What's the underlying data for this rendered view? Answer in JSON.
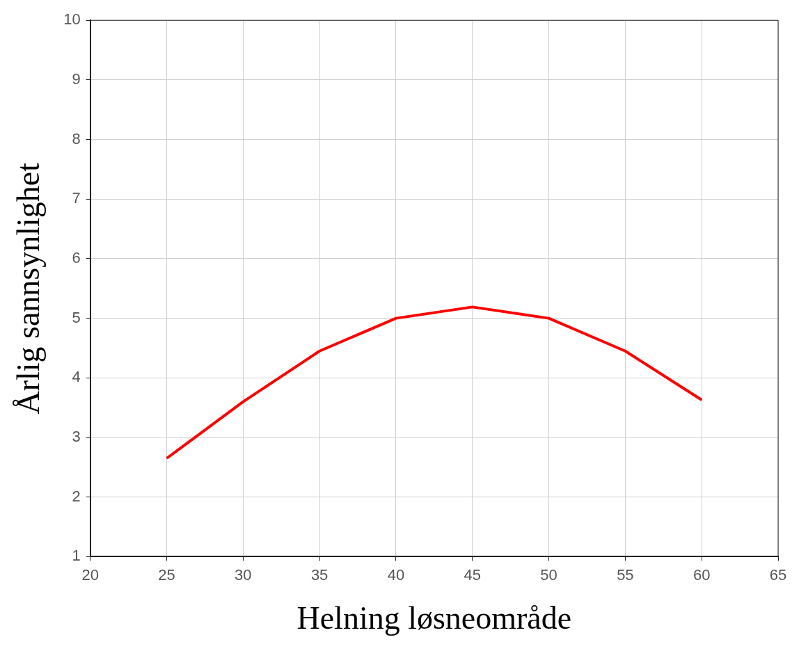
{
  "chart_data": {
    "type": "line",
    "xlabel": "Helning løsneområde",
    "ylabel": "Årlig sannsynlighet",
    "x": [
      25,
      30,
      35,
      40,
      45,
      50,
      55,
      60
    ],
    "series": [
      {
        "color": "#ff0000",
        "values": [
          2.65,
          3.6,
          4.45,
          5.0,
          5.19,
          5.0,
          4.45,
          3.63
        ]
      }
    ],
    "xlim": [
      20,
      65
    ],
    "xticks": [
      20,
      25,
      30,
      35,
      40,
      45,
      50,
      55,
      60,
      65
    ],
    "ylim": [
      1,
      10
    ],
    "yticks": [
      1,
      2,
      3,
      4,
      5,
      6,
      7,
      8,
      9,
      10
    ],
    "grid": true,
    "legend": false,
    "marker": "none",
    "line_style": "solid"
  }
}
